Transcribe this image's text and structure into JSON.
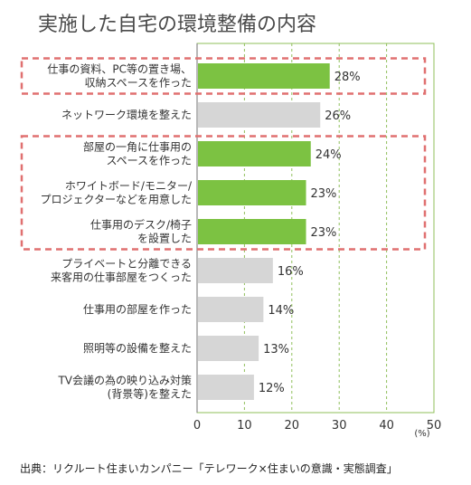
{
  "chart_data": {
    "type": "bar",
    "orientation": "horizontal",
    "title": "実施した自宅の環境整備の内容",
    "unit_label": "(%)",
    "source": "出典：リクルート住まいカンパニー「テレワーク×住まいの意識・実態調査」",
    "xlim": [
      0,
      50
    ],
    "xticks": [
      "0",
      "10",
      "20",
      "30",
      "40",
      "50"
    ],
    "grid": "vertical dashed at 10, 20, 30, 40",
    "colors": {
      "highlight": "#7cc242",
      "normal": "#d6d6d6",
      "box": "#e07070",
      "grid": "#8fbf5a"
    },
    "categories": [
      [
        "仕事の資料、PC等の置き場、",
        "収納スペースを作った"
      ],
      [
        "ネットワーク環境を整えた"
      ],
      [
        "部屋の一角に仕事用の",
        "スペースを作った"
      ],
      [
        "ホワイトボード/モニター/",
        "プロジェクターなどを用意した"
      ],
      [
        "仕事用のデスク/椅子",
        "を設置した"
      ],
      [
        "プライベートと分離できる",
        "来客用の仕事部屋をつくった"
      ],
      [
        "仕事用の部屋を作った"
      ],
      [
        "照明等の設備を整えた"
      ],
      [
        "TV会議の為の映り込み対策",
        "(背景等)を整えた"
      ]
    ],
    "values": [
      28,
      26,
      24,
      23,
      23,
      16,
      14,
      13,
      12
    ],
    "value_labels": [
      "28%",
      "26%",
      "24%",
      "23%",
      "23%",
      "16%",
      "14%",
      "13%",
      "12%"
    ],
    "highlighted": [
      true,
      false,
      true,
      true,
      true,
      false,
      false,
      false,
      false
    ],
    "highlight_groups": [
      [
        0,
        0
      ],
      [
        2,
        4
      ]
    ]
  }
}
